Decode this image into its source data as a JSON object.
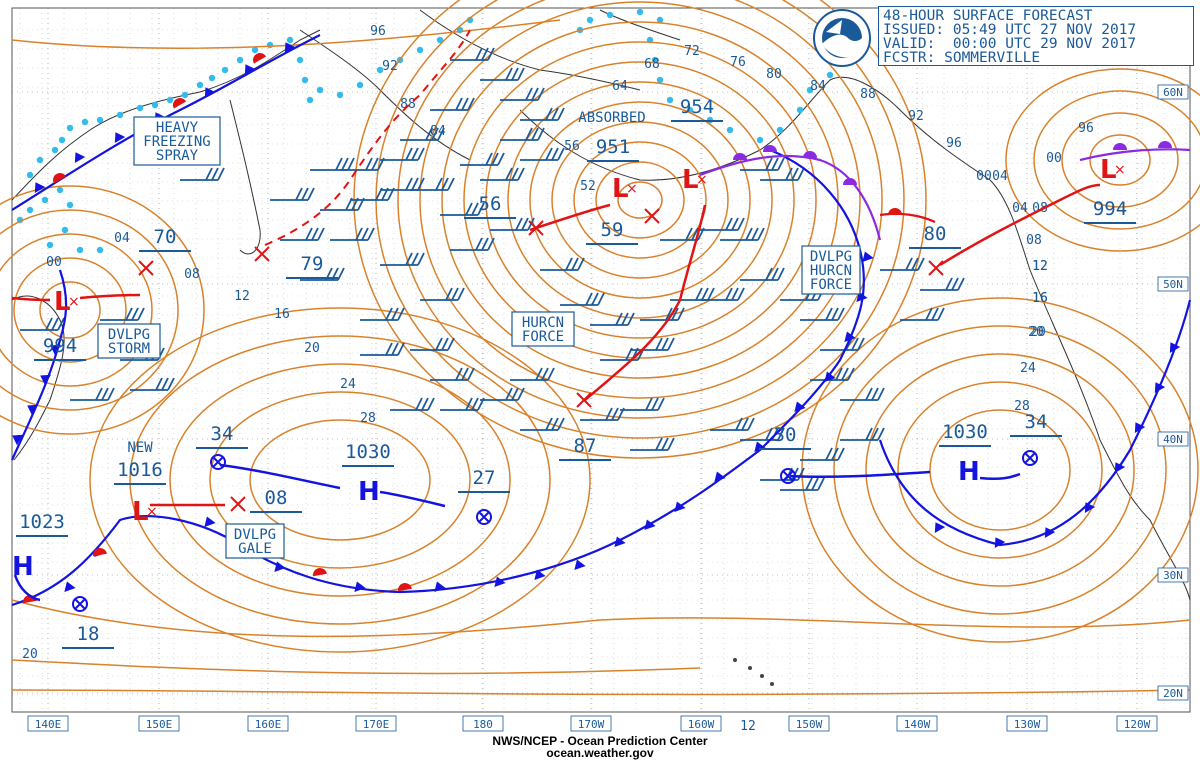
{
  "header": {
    "line1": "48-HOUR SURFACE FORECAST",
    "line2": "ISSUED: 05:49 UTC 27 NOV 2017",
    "line3": "VALID:  00:00 UTC 29 NOV 2017",
    "line4": "FCSTR: SOMMERVILLE"
  },
  "logo_text": "NOAA",
  "footer": {
    "line1": "NWS/NCEP - Ocean Prediction Center",
    "line2": "ocean.weather.gov"
  },
  "lon_labels": [
    "140E",
    "150E",
    "160E",
    "170E",
    "180",
    "170W",
    "160W",
    "150W",
    "140W",
    "130W",
    "120W"
  ],
  "lat_labels": [
    "60N",
    "50N",
    "40N",
    "30N",
    "20N"
  ],
  "colors": {
    "isobar": "#d9822b",
    "text": "#1a5a9a",
    "cold_front": "#1414e0",
    "warm_front": "#e01414",
    "occluded": "#8a2be2",
    "ice": "#33bbee",
    "grid": "#777777"
  },
  "labels": {
    "heavy_freezing_spray": [
      "HEAVY",
      "FREEZING",
      "SPRAY"
    ],
    "dvlpg_storm": [
      "DVLPG",
      "STORM"
    ],
    "hurcn_force_1": [
      "HURCN",
      "FORCE"
    ],
    "dvlpg_hurcn_force": [
      "DVLPG",
      "HURCN",
      "FORCE"
    ],
    "dvlpg_gale": [
      "DVLPG",
      "GALE"
    ],
    "absorbed": "ABSORBED",
    "new": "NEW"
  },
  "pressures": {
    "p_951": "951",
    "p_954": "954",
    "p_994_left": "994",
    "p_994_right": "994",
    "p_1030_a": "1030",
    "p_1030_b": "1030",
    "p_1016": "1016",
    "p_1023": "1023",
    "p_70": "70",
    "p_79": "79",
    "p_56": "56",
    "p_59": "59",
    "p_80": "80",
    "p_87": "87",
    "p_30": "30",
    "p_34_a": "34",
    "p_34_b": "34",
    "p_27": "27",
    "p_08_h": "08",
    "p_18": "18"
  },
  "isobar_values": [
    "96",
    "92",
    "88",
    "84",
    "72",
    "76",
    "80",
    "84",
    "88",
    "92",
    "96",
    "00",
    "04",
    "08",
    "12",
    "16",
    "20",
    "24",
    "28",
    "64",
    "68",
    "56",
    "52",
    "00",
    "04",
    "08",
    "12",
    "16",
    "20",
    "24",
    "28",
    "96",
    "00",
    "04",
    "08",
    "12",
    "16",
    "20",
    "12",
    "20"
  ],
  "pressure_systems": [
    {
      "type": "L",
      "label": "994"
    },
    {
      "type": "L",
      "label": "951"
    },
    {
      "type": "L",
      "label": "954"
    },
    {
      "type": "L",
      "label": "994"
    },
    {
      "type": "L",
      "label": "1016"
    },
    {
      "type": "H",
      "label": "1030"
    },
    {
      "type": "H",
      "label": "1030"
    },
    {
      "type": "H",
      "label": "1023"
    }
  ]
}
